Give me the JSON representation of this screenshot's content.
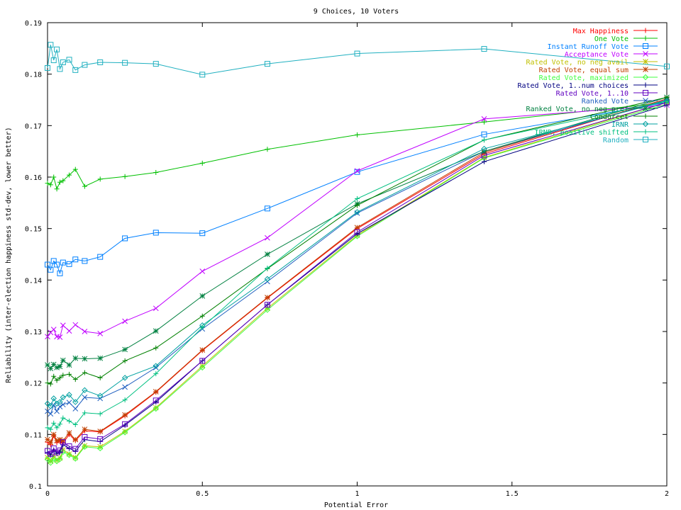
{
  "chart_data": {
    "type": "line",
    "title": "9 Choices, 10 Voters",
    "xlabel": "Potential Error",
    "ylabel": "Reliability (inter-election happiness std-dev, lower better)",
    "xlim": [
      0,
      2
    ],
    "ylim": [
      0.1,
      0.19
    ],
    "xticks": [
      0,
      0.5,
      1,
      1.5,
      2
    ],
    "xtick_labels": [
      "0",
      "0.5",
      "1",
      "1.5",
      "2"
    ],
    "yticks": [
      0.1,
      0.11,
      0.12,
      0.13,
      0.14,
      0.15,
      0.16,
      0.17,
      0.18,
      0.19
    ],
    "ytick_labels": [
      "0.1",
      "0.11",
      "0.12",
      "0.13",
      "0.14",
      "0.15",
      "0.16",
      "0.17",
      "0.18",
      "0.19"
    ],
    "grid": false,
    "legend_position": "top-right",
    "x": [
      0,
      0.01,
      0.02,
      0.03,
      0.04,
      0.05,
      0.07,
      0.09,
      0.12,
      0.17,
      0.25,
      0.35,
      0.5,
      0.71,
      1,
      1.41,
      2
    ],
    "series": [
      {
        "name": "Max Happiness",
        "color": "#ff0000",
        "marker": "plus",
        "values": [
          0.1085,
          0.108,
          0.1098,
          0.1084,
          0.1087,
          0.1083,
          0.11,
          0.1088,
          0.1107,
          0.1105,
          0.1136,
          0.1182,
          0.1263,
          0.1365,
          0.15,
          0.1645,
          0.1752
        ]
      },
      {
        "name": "One Vote",
        "color": "#00c000",
        "marker": "plus",
        "values": [
          0.1588,
          0.1585,
          0.16,
          0.1577,
          0.159,
          0.1593,
          0.1604,
          0.1615,
          0.1582,
          0.1596,
          0.1601,
          0.1609,
          0.1627,
          0.1654,
          0.1682,
          0.1707,
          0.1745
        ]
      },
      {
        "name": "Instant Runoff Vote",
        "color": "#0080ff",
        "marker": "square",
        "values": [
          0.143,
          0.142,
          0.1437,
          0.143,
          0.1413,
          0.1434,
          0.1431,
          0.144,
          0.1437,
          0.1445,
          0.1481,
          0.1492,
          0.1491,
          0.1539,
          0.161,
          0.1683,
          0.1745
        ]
      },
      {
        "name": "Acceptance Vote",
        "color": "#c000ff",
        "marker": "x",
        "values": [
          0.129,
          0.1298,
          0.1304,
          0.129,
          0.1289,
          0.1312,
          0.1301,
          0.1313,
          0.13,
          0.1296,
          0.132,
          0.1345,
          0.1417,
          0.1482,
          0.1612,
          0.1713,
          0.174
        ]
      },
      {
        "name": "Rated Vote, no neg avail",
        "color": "#c0c000",
        "marker": "star",
        "values": [
          0.1055,
          0.1048,
          0.1057,
          0.105,
          0.1054,
          0.107,
          0.1062,
          0.1055,
          0.1078,
          0.1076,
          0.1106,
          0.1152,
          0.1233,
          0.1345,
          0.1487,
          0.1638,
          0.1745
        ]
      },
      {
        "name": "Rated Vote, equal sum",
        "color": "#c04000",
        "marker": "star",
        "values": [
          0.109,
          0.1085,
          0.11,
          0.1088,
          0.109,
          0.1088,
          0.1103,
          0.109,
          0.111,
          0.1106,
          0.1138,
          0.1183,
          0.1264,
          0.1366,
          0.1502,
          0.1648,
          0.1752
        ]
      },
      {
        "name": "Rated Vote, maximized",
        "color": "#40ff40",
        "marker": "diamond",
        "values": [
          0.1052,
          0.1045,
          0.1053,
          0.1048,
          0.1052,
          0.1066,
          0.106,
          0.1053,
          0.1076,
          0.1073,
          0.1104,
          0.115,
          0.123,
          0.1342,
          0.1485,
          0.1637,
          0.1742
        ]
      },
      {
        "name": "Rated Vote, 1..num choices",
        "color": "#000080",
        "marker": "plus",
        "values": [
          0.1065,
          0.106,
          0.107,
          0.1063,
          0.1066,
          0.108,
          0.1073,
          0.1067,
          0.109,
          0.1086,
          0.1118,
          0.1163,
          0.1243,
          0.1352,
          0.149,
          0.163,
          0.174
        ]
      },
      {
        "name": "Rated Vote, 1..10",
        "color": "#6000c0",
        "marker": "square",
        "values": [
          0.1068,
          0.1062,
          0.1073,
          0.1065,
          0.1069,
          0.1085,
          0.1077,
          0.1072,
          0.1095,
          0.1091,
          0.112,
          0.1166,
          0.1243,
          0.1352,
          0.1493,
          0.1642,
          0.1745
        ]
      },
      {
        "name": "Ranked Vote",
        "color": "#2060c0",
        "marker": "x",
        "values": [
          0.1145,
          0.114,
          0.1157,
          0.1145,
          0.1154,
          0.1158,
          0.1162,
          0.115,
          0.1172,
          0.117,
          0.1192,
          0.123,
          0.1305,
          0.1397,
          0.153,
          0.165,
          0.175
        ]
      },
      {
        "name": "Ranked Vote, no neg pref",
        "color": "#008040",
        "marker": "star",
        "values": [
          0.1235,
          0.1228,
          0.1236,
          0.123,
          0.1232,
          0.1244,
          0.1235,
          0.1248,
          0.1247,
          0.1248,
          0.1265,
          0.1301,
          0.1369,
          0.145,
          0.1548,
          0.165,
          0.1755
        ]
      },
      {
        "name": "Condorcet",
        "color": "#008000",
        "marker": "plus",
        "values": [
          0.12,
          0.1198,
          0.1213,
          0.1205,
          0.121,
          0.1215,
          0.1217,
          0.1207,
          0.122,
          0.121,
          0.1243,
          0.1268,
          0.133,
          0.1422,
          0.1545,
          0.1672,
          0.1755
        ]
      },
      {
        "name": "IRNR",
        "color": "#00a0a0",
        "marker": "diamond",
        "values": [
          0.116,
          0.1155,
          0.117,
          0.116,
          0.1163,
          0.1172,
          0.1177,
          0.1163,
          0.1186,
          0.1175,
          0.121,
          0.1233,
          0.1312,
          0.1402,
          0.1532,
          0.1655,
          0.1748
        ]
      },
      {
        "name": "IRNR, positive shifted",
        "color": "#00c080",
        "marker": "plus",
        "values": [
          0.1113,
          0.111,
          0.1122,
          0.1113,
          0.112,
          0.1132,
          0.1126,
          0.1119,
          0.1142,
          0.114,
          0.1167,
          0.1218,
          0.1308,
          0.1423,
          0.1558,
          0.1672,
          0.1748
        ]
      },
      {
        "name": "Random",
        "color": "#20b0c0",
        "marker": "square",
        "values": [
          0.1812,
          0.1857,
          0.1827,
          0.1848,
          0.181,
          0.1823,
          0.1828,
          0.1808,
          0.1818,
          0.1823,
          0.1822,
          0.182,
          0.1799,
          0.182,
          0.184,
          0.1849,
          0.1815
        ]
      }
    ]
  }
}
